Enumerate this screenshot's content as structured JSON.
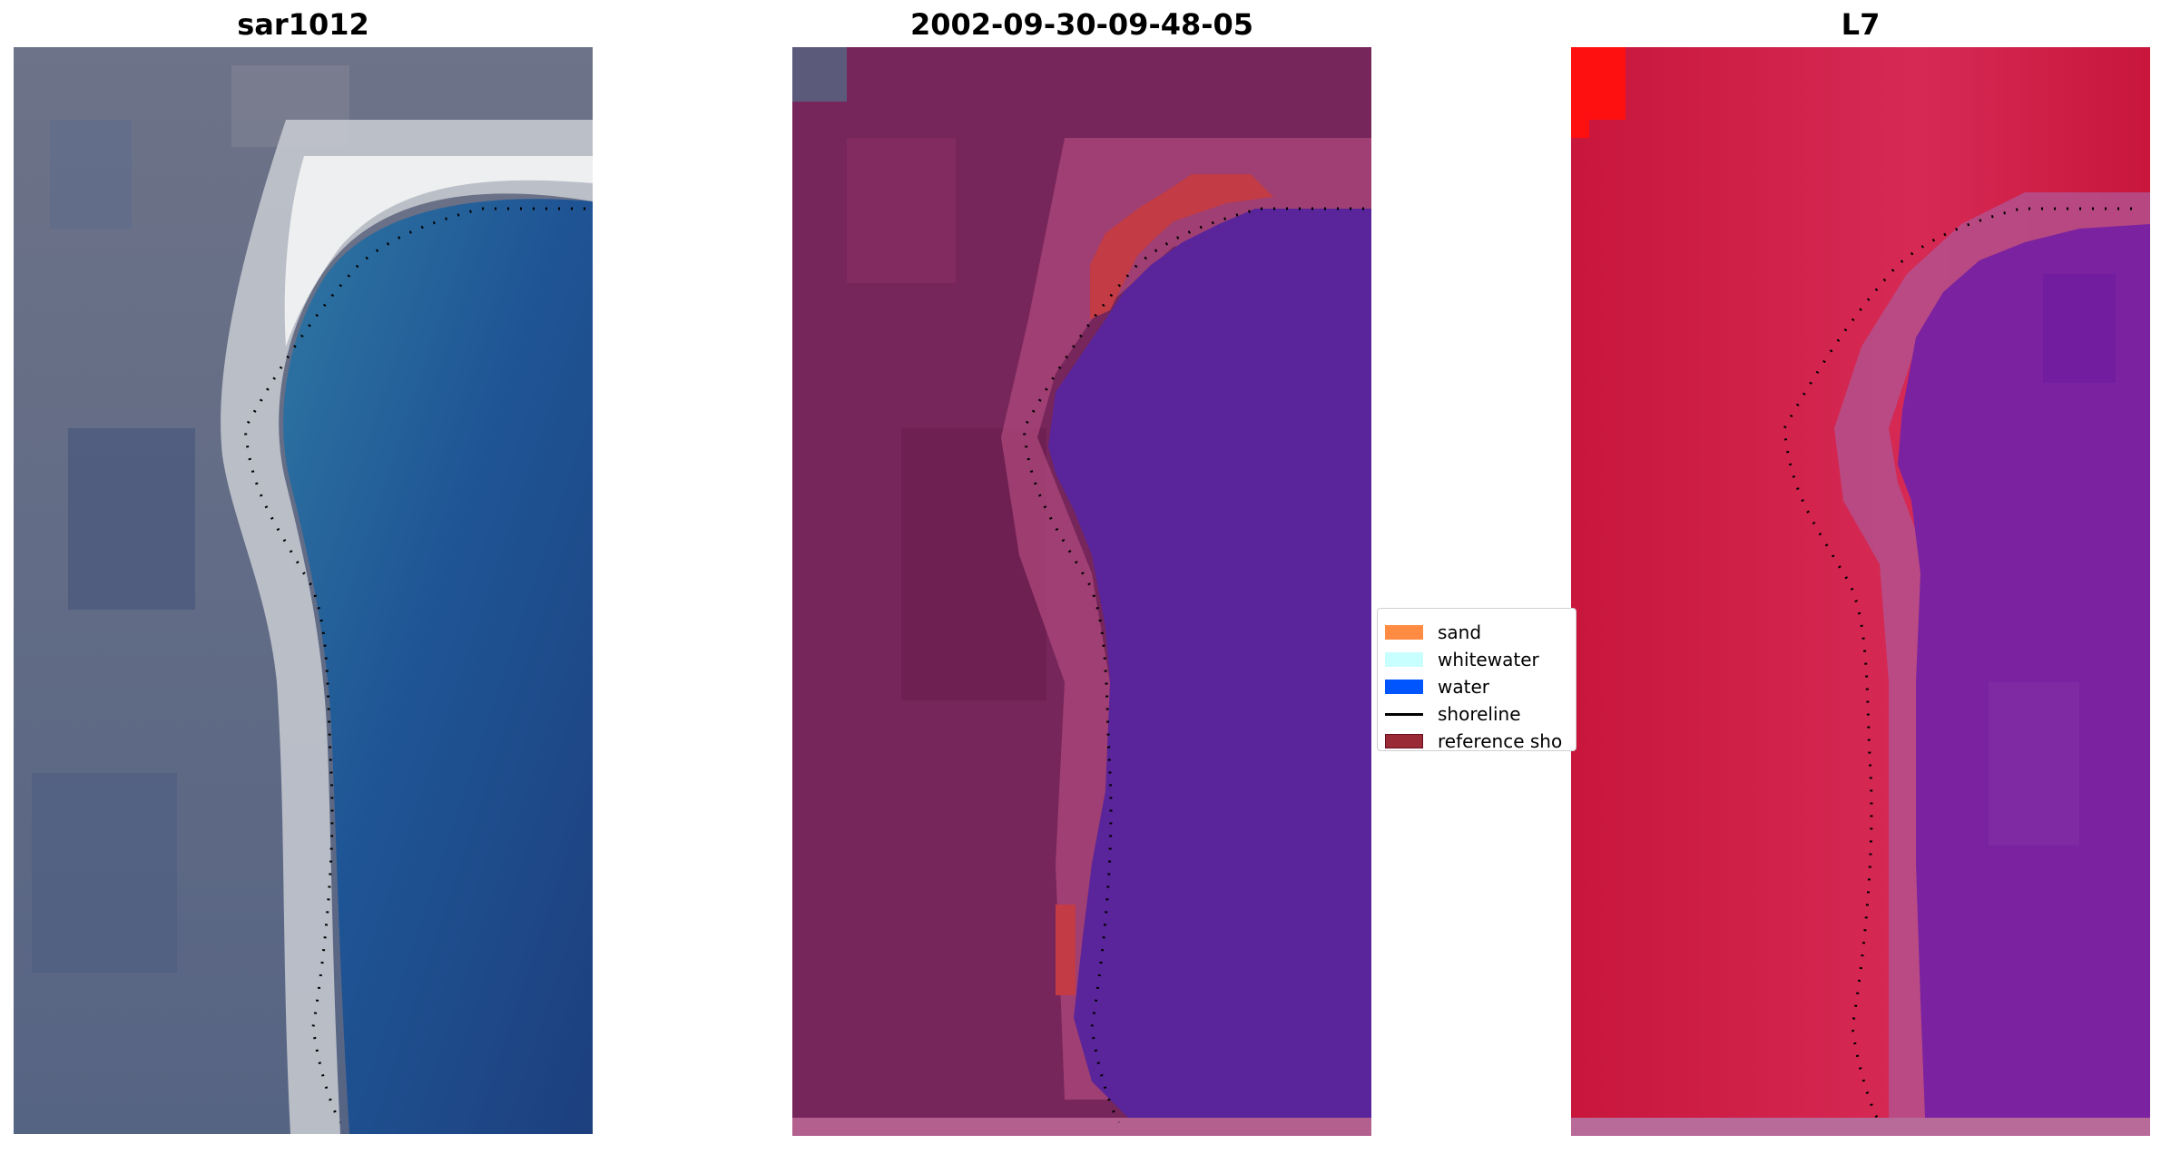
{
  "panels": [
    {
      "id": "rgb",
      "title": "sar1012"
    },
    {
      "id": "classified",
      "title": "2002-09-30-09-48-05"
    },
    {
      "id": "mndwi",
      "title": "L7"
    }
  ],
  "legend": {
    "items": [
      {
        "label": "sand",
        "color": "#ff8c42",
        "kind": "patch"
      },
      {
        "label": "whitewater",
        "color": "#c8ffff",
        "kind": "patch"
      },
      {
        "label": "water",
        "color": "#0055ff",
        "kind": "patch"
      },
      {
        "label": "shoreline",
        "color": "#000000",
        "kind": "line"
      },
      {
        "label": "reference sho",
        "color": "#9a2a36",
        "kind": "patch"
      }
    ]
  },
  "colors": {
    "rgb_land": "#4a5a7e",
    "rgb_water": "#1f4a8a",
    "rgb_beach": "#c8c8c0",
    "class_land": "#7a2458",
    "class_water": "#5a249a",
    "class_ref": "#c0343c",
    "ndwi_land": "#c8143a",
    "ndwi_water": "#6a1c98"
  }
}
